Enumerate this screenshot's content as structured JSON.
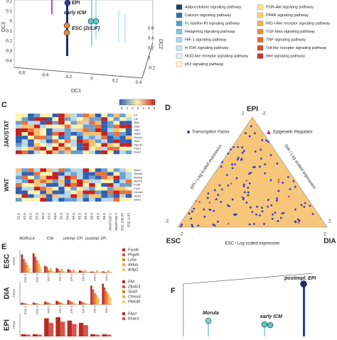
{
  "panel_a": {
    "axis_labels": {
      "x": "DC1",
      "y": "DC3",
      "z": "DC2"
    },
    "x_ticks": [
      "-0.6",
      "-0.4",
      "-0.2",
      "0",
      "0.2",
      "0.4"
    ],
    "y_ticks": [
      "0.2",
      "0.1",
      "0",
      "-0.1",
      "-0.2",
      "-0.3",
      "-0.4"
    ],
    "z_ticks": [
      "0.6",
      "0.4",
      "0.2",
      "0",
      "-0.2"
    ],
    "point_labels": [
      "EPI",
      "early ICM",
      "ESC (2i/LIF)"
    ]
  },
  "legend": {
    "items": [
      {
        "name": "Adipocytokine signaling pathway",
        "color": "#1f3a6e"
      },
      {
        "name": "Calcium signaling pathway",
        "color": "#2f6fb0"
      },
      {
        "name": "Fc epsilon RI signaling pathway",
        "color": "#4a9fd8"
      },
      {
        "name": "Hedgehog signaling pathway",
        "color": "#7fc4e8"
      },
      {
        "name": "HIF-1 signaling pathway",
        "color": "#a8d8ee"
      },
      {
        "name": "mTOR signaling pathway",
        "color": "#c8e6f2"
      },
      {
        "name": "NOD-like receptor signaling pathway",
        "color": "#dff0f7"
      },
      {
        "name": "p53 signaling pathway",
        "color": "#fff5c0"
      },
      {
        "name": "PI3K-Akt signaling pathway",
        "color": "#fde68a"
      },
      {
        "name": "PPAR signaling pathway",
        "color": "#fcd36a"
      },
      {
        "name": "RIG-I-like receptor signaling pathway",
        "color": "#f9b34a"
      },
      {
        "name": "TGF-beta signaling pathway",
        "color": "#f28a30"
      },
      {
        "name": "TNF signaling pathway",
        "color": "#e86a2a"
      },
      {
        "name": "Toll-like receptor signaling pathway",
        "color": "#d9502a"
      },
      {
        "name": "Wnt signaling pathway",
        "color": "#c0392b"
      }
    ]
  },
  "panel_c": {
    "letter": "C",
    "scale_ticks": [
      "0",
      "1",
      "2",
      "3",
      "4",
      "5",
      "6"
    ],
    "groups": [
      {
        "name": "JAK/STAT",
        "genes": [
          "Lif",
          "Lifr",
          "Il6st",
          "Jak1",
          "Jak2",
          "Stat3",
          "Socs3",
          "Il4ra",
          "Ptpn11",
          "Pias1",
          "Ifnar1"
        ]
      },
      {
        "name": "WNT",
        "genes": [
          "Wnt3",
          "Wnt3a",
          "Wnt5a",
          "Wnt7b",
          "Fzd5",
          "Fzd7",
          "Ctnnb1",
          "Axin2",
          "Dab2"
        ]
      }
    ],
    "columns": [
      "E2.5",
      "E2.5",
      "E2.5",
      "E3.5",
      "E3.5",
      "E3.5",
      "E4.5",
      "E4.5",
      "E4.5",
      "E5.5",
      "E5.5",
      "E5.5",
      "E6.5",
      "E6.5",
      "E6.5",
      "SNAP2GE 1",
      "SNAP2GE 2",
      "ESC (2i/LIF)",
      "ESC (LIF)"
    ],
    "column_groups": [
      "MORULA",
      "ICM",
      "preimpl. EPI",
      "postimpl. EPI"
    ]
  },
  "panel_d": {
    "letter": "D",
    "corners": {
      "top": "EPI",
      "left": "ESC",
      "right": "DIA"
    },
    "legend": [
      "Transcription Factor",
      "Epigenetic Regulator"
    ],
    "axis_labels": [
      "EPI / Log scaled expression",
      "DIA / Log scaled expression",
      "ESC / Log scaled expression"
    ],
    "ticks": [
      "2",
      "-2",
      "-2",
      "2",
      "2",
      "-2"
    ]
  },
  "panel_e": {
    "letter": "E",
    "columns": [
      "ESC 1",
      "ESC 2",
      "EPI 1",
      "EPI 2",
      "EPI 3",
      "EPI 4",
      "DIA 1",
      "DIA 2"
    ],
    "unit": "FPKM",
    "subpanels": [
      {
        "label": "ESC",
        "ylim": [
          0,
          200
        ],
        "genes": [
          {
            "name": "Fxyd6",
            "color": "#b22d1f",
            "values": [
              160,
              170,
              60,
              40,
              30,
              20,
              10,
              10
            ]
          },
          {
            "name": "Phgdh",
            "color": "#d9534f",
            "values": [
              120,
              140,
              50,
              30,
              25,
              15,
              8,
              8
            ]
          },
          {
            "name": "Ly6a",
            "color": "#e67e22",
            "values": [
              90,
              110,
              20,
              15,
              10,
              10,
              5,
              5
            ]
          },
          {
            "name": "Aldoa",
            "color": "#f0ad4e",
            "values": [
              70,
              80,
              40,
              35,
              30,
              25,
              20,
              20
            ]
          },
          {
            "name": "Arfip2",
            "color": "#f5c77e",
            "values": [
              40,
              50,
              20,
              15,
              12,
              10,
              8,
              8
            ]
          }
        ]
      },
      {
        "label": "DIA",
        "ylim": [
          0,
          60
        ],
        "genes": [
          {
            "name": "Fhit",
            "color": "#b22d1f",
            "values": [
              5,
              5,
              8,
              10,
              12,
              10,
              50,
              55
            ]
          },
          {
            "name": "Zfp423",
            "color": "#d9534f",
            "values": [
              4,
              4,
              6,
              8,
              9,
              8,
              40,
              45
            ]
          },
          {
            "name": "Sod3",
            "color": "#e67e22",
            "values": [
              3,
              3,
              5,
              6,
              7,
              6,
              30,
              35
            ]
          },
          {
            "name": "Ctnna3",
            "color": "#f0ad4e",
            "values": [
              2,
              2,
              3,
              4,
              5,
              4,
              25,
              28
            ]
          },
          {
            "name": "Plekd4",
            "color": "#f5c77e",
            "values": [
              1,
              1,
              2,
              3,
              3,
              3,
              18,
              20
            ]
          }
        ]
      },
      {
        "label": "EPI",
        "ylim": [
          0,
          100
        ],
        "genes": [
          {
            "name": "Fbp2",
            "color": "#b22d1f",
            "values": [
              10,
              10,
              80,
              85,
              70,
              60,
              10,
              10
            ]
          },
          {
            "name": "Khdc3",
            "color": "#d9534f",
            "values": [
              8,
              8,
              60,
              65,
              55,
              50,
              8,
              8
            ]
          }
        ]
      }
    ]
  },
  "panel_f": {
    "letter": "F",
    "point_labels": [
      "postimpl. EPI",
      "Morula",
      "early ICM"
    ]
  }
}
